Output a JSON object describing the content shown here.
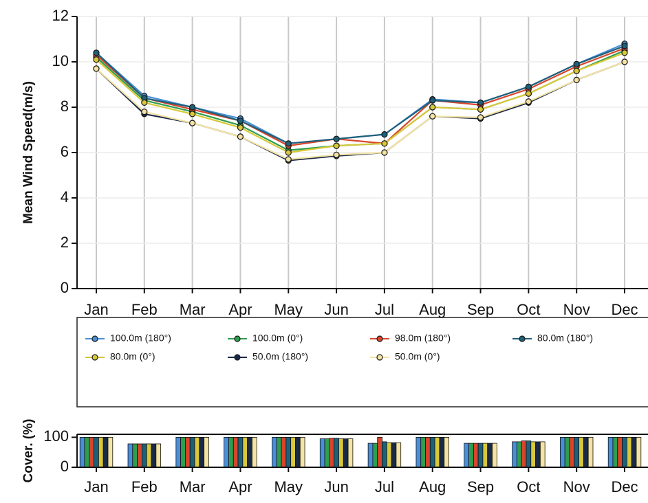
{
  "chart_data": [
    {
      "type": "line",
      "ylabel": "Mean Wind Speed(m/s)",
      "categories": [
        "Jan",
        "Feb",
        "Mar",
        "Apr",
        "May",
        "Jun",
        "Jul",
        "Aug",
        "Sep",
        "Oct",
        "Nov",
        "Dec"
      ],
      "ylim": [
        0,
        12
      ],
      "yticks": [
        0,
        2,
        4,
        6,
        8,
        10,
        12
      ],
      "grid": true,
      "series": [
        {
          "name": "100.0m (180°)",
          "color": "#4a8fd6",
          "values": [
            10.4,
            8.5,
            8.0,
            7.5,
            6.4,
            6.6,
            6.8,
            8.35,
            8.2,
            8.9,
            9.9,
            10.8
          ]
        },
        {
          "name": "100.0m (0°)",
          "color": "#2e9e4f",
          "values": [
            10.2,
            8.3,
            7.8,
            7.2,
            6.1,
            6.3,
            6.4,
            8.0,
            7.9,
            8.6,
            9.6,
            10.5
          ]
        },
        {
          "name": "98.0m (180°)",
          "color": "#d9452b",
          "values": [
            10.3,
            8.4,
            7.9,
            7.4,
            6.3,
            6.6,
            6.4,
            8.3,
            8.1,
            8.8,
            9.8,
            10.6
          ]
        },
        {
          "name": "80.0m (180°)",
          "color": "#1f6079",
          "values": [
            10.4,
            8.4,
            8.0,
            7.4,
            6.4,
            6.6,
            6.8,
            8.3,
            8.2,
            8.9,
            9.9,
            10.7
          ]
        },
        {
          "name": "80.0m (0°)",
          "color": "#d8c83a",
          "values": [
            10.1,
            8.2,
            7.7,
            7.1,
            6.0,
            6.3,
            6.4,
            8.0,
            7.9,
            8.6,
            9.6,
            10.4
          ]
        },
        {
          "name": "50.0m (180°)",
          "color": "#1b2948",
          "values": [
            9.7,
            7.7,
            7.3,
            6.7,
            5.65,
            5.85,
            6.0,
            7.6,
            7.5,
            8.2,
            9.2,
            10.0
          ]
        },
        {
          "name": "50.0m (0°)",
          "color": "#f3e3a4",
          "values": [
            9.7,
            7.8,
            7.3,
            6.7,
            5.7,
            5.9,
            6.0,
            7.6,
            7.55,
            8.25,
            9.2,
            10.0
          ]
        }
      ]
    },
    {
      "type": "bar",
      "ylabel": "Cover. (%)",
      "categories": [
        "Jan",
        "Feb",
        "Mar",
        "Apr",
        "May",
        "Jun",
        "Jul",
        "Aug",
        "Sep",
        "Oct",
        "Nov",
        "Dec"
      ],
      "ylim": [
        0,
        110
      ],
      "yticks": [
        0,
        100
      ],
      "series": [
        {
          "color": "#4a8fd6",
          "values": [
            100,
            78,
            100,
            100,
            100,
            95,
            80,
            100,
            80,
            85,
            100,
            100
          ]
        },
        {
          "color": "#2e9e4f",
          "values": [
            100,
            78,
            100,
            100,
            100,
            95,
            80,
            100,
            80,
            85,
            100,
            100
          ]
        },
        {
          "color": "#d9452b",
          "values": [
            100,
            78,
            100,
            100,
            100,
            97,
            100,
            100,
            80,
            88,
            100,
            100
          ]
        },
        {
          "color": "#1f6079",
          "values": [
            100,
            78,
            100,
            100,
            100,
            97,
            85,
            100,
            80,
            88,
            100,
            100
          ]
        },
        {
          "color": "#d8c83a",
          "values": [
            100,
            78,
            100,
            100,
            100,
            95,
            82,
            100,
            80,
            85,
            100,
            100
          ]
        },
        {
          "color": "#1b2948",
          "values": [
            100,
            78,
            100,
            100,
            100,
            95,
            82,
            100,
            80,
            85,
            100,
            100
          ]
        },
        {
          "color": "#f3e3a4",
          "values": [
            100,
            78,
            100,
            100,
            100,
            95,
            82,
            100,
            80,
            85,
            100,
            100
          ]
        }
      ]
    }
  ]
}
